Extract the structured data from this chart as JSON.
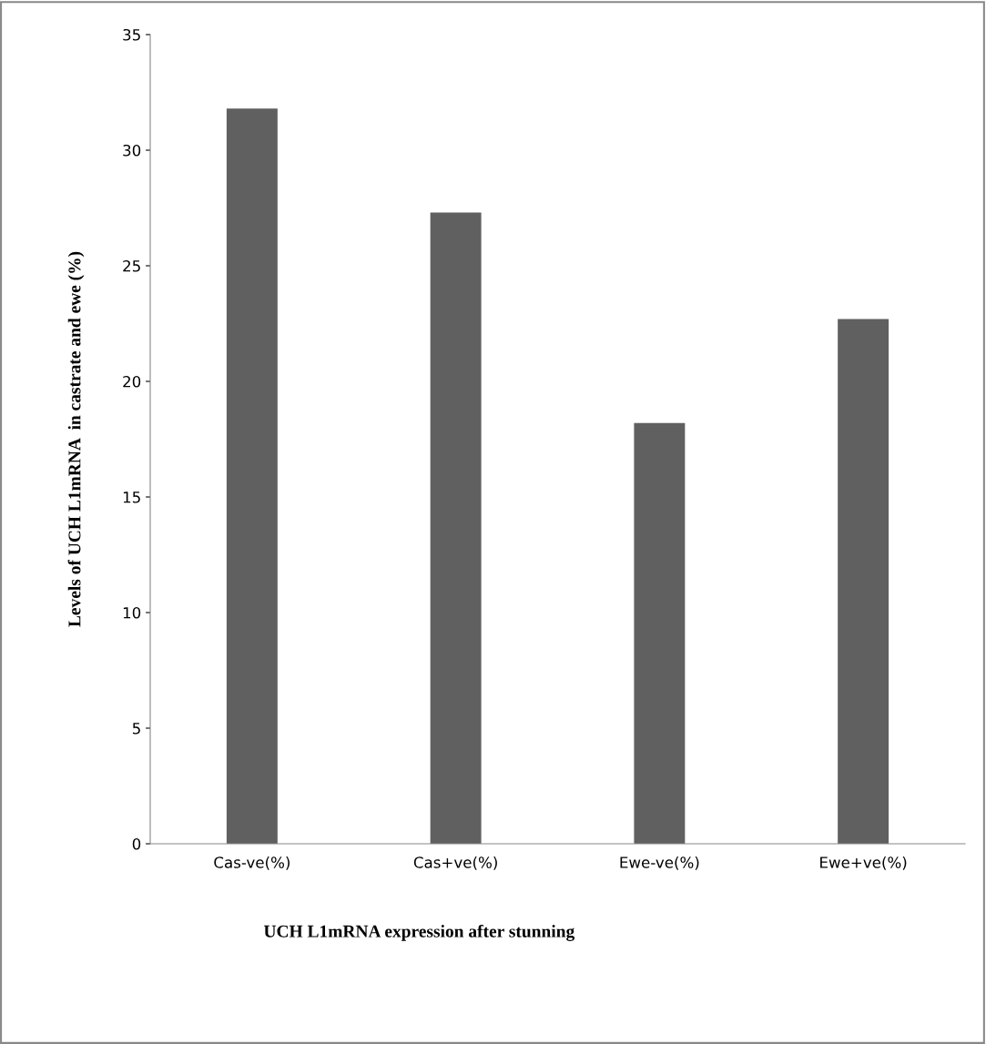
{
  "chart_data": {
    "type": "bar",
    "xlabel": "UCH L1mRNA expression after stunning",
    "ylabel": "Levels of UCH L1mRNA  in castrate and ewe (%)",
    "categories": [
      "Cas-ve(%)",
      "Cas+ve(%)",
      "Ewe-ve(%)",
      "Ewe+ve(%)"
    ],
    "values": [
      31.8,
      27.3,
      18.2,
      22.7
    ],
    "color": "#606060",
    "ylim": [
      0,
      35
    ],
    "yticks": [
      0,
      5,
      10,
      15,
      20,
      25,
      30,
      35
    ],
    "grid": false,
    "legend": false
  }
}
